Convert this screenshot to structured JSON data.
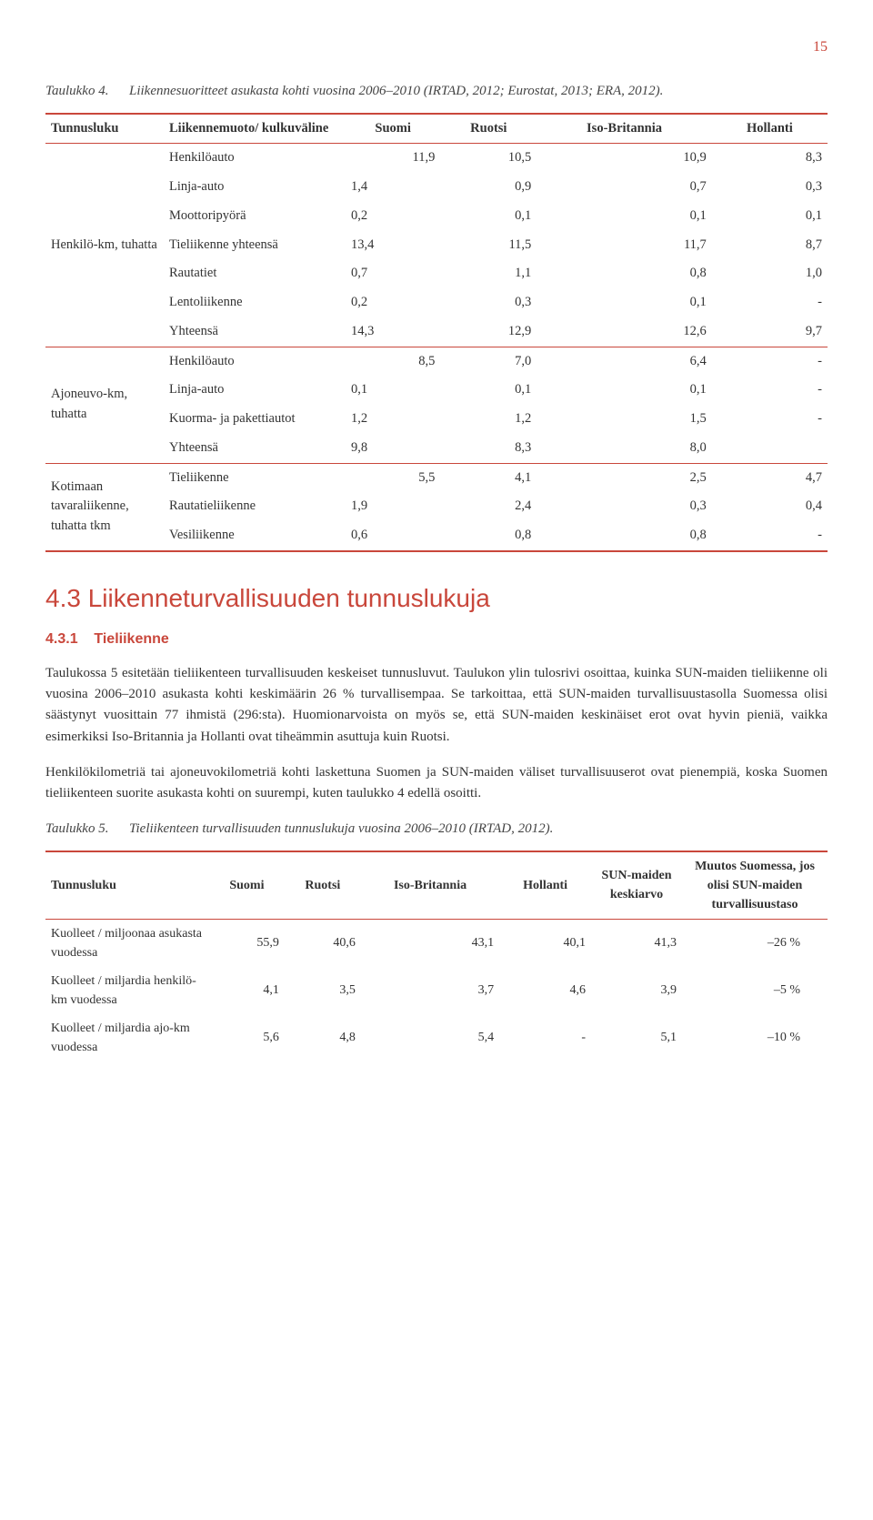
{
  "page_number": "15",
  "table4": {
    "caption_label": "Taulukko 4.",
    "caption_text": "Liikennesuoritteet asukasta kohti vuosina 2006–2010 (IRTAD, 2012; Eurostat, 2013; ERA, 2012).",
    "headers": [
      "Tunnusluku",
      "Liikennemuoto/ kulkuväline",
      "Suomi",
      "Ruotsi",
      "Iso-Britannia",
      "Hollanti"
    ],
    "groups": [
      {
        "name": "Henkilö-km, tuhatta",
        "rows": [
          [
            "Henkilöauto",
            "11,9",
            "10,5",
            "10,9",
            "8,3"
          ],
          [
            "Linja-auto",
            "1,4",
            "0,9",
            "0,7",
            "0,3"
          ],
          [
            "Moottoripyörä",
            "0,2",
            "0,1",
            "0,1",
            "0,1"
          ],
          [
            "Tieliikenne yhteensä",
            "13,4",
            "11,5",
            "11,7",
            "8,7"
          ],
          [
            "Rautatiet",
            "0,7",
            "1,1",
            "0,8",
            "1,0"
          ],
          [
            "Lentoliikenne",
            "0,2",
            "0,3",
            "0,1",
            "-"
          ],
          [
            "Yhteensä",
            "14,3",
            "12,9",
            "12,6",
            "9,7"
          ]
        ]
      },
      {
        "name": "Ajoneuvo-km, tuhatta",
        "rows": [
          [
            "Henkilöauto",
            "8,5",
            "7,0",
            "6,4",
            "-"
          ],
          [
            "Linja-auto",
            "0,1",
            "0,1",
            "0,1",
            "-"
          ],
          [
            "Kuorma- ja pakettiautot",
            "1,2",
            "1,2",
            "1,5",
            "-"
          ],
          [
            "Yhteensä",
            "9,8",
            "8,3",
            "8,0",
            ""
          ]
        ]
      },
      {
        "name": "Kotimaan tavaraliikenne, tuhatta tkm",
        "rows": [
          [
            "Tieliikenne",
            "5,5",
            "4,1",
            "2,5",
            "4,7"
          ],
          [
            "Rautatieliikenne",
            "1,9",
            "2,4",
            "0,3",
            "0,4"
          ],
          [
            "Vesiliikenne",
            "0,6",
            "0,8",
            "0,8",
            "-"
          ]
        ]
      }
    ]
  },
  "section": {
    "number": "4.3",
    "title": "Liikenneturvallisuuden tunnuslukuja",
    "sub_number": "4.3.1",
    "sub_title": "Tieliikenne"
  },
  "paragraphs": {
    "p1": "Taulukossa 5 esitetään tieliikenteen turvallisuuden keskeiset tunnusluvut. Taulukon ylin tulosrivi osoittaa, kuinka SUN-maiden tieliikenne oli vuosina 2006–2010 asukasta kohti keskimäärin 26 % turvallisempaa. Se tarkoittaa, että SUN-maiden turvallisuustasolla Suomessa olisi säästynyt vuosittain 77 ihmistä (296:sta). Huomionarvoista on myös se, että SUN-maiden keskinäiset erot ovat hyvin pieniä, vaikka esimerkiksi Iso-Britannia ja Hollanti ovat tiheämmin asuttuja kuin Ruotsi.",
    "p2": "Henkilökilometriä tai ajoneuvokilometriä kohti laskettuna Suomen ja SUN-maiden väliset turvallisuuserot ovat pienempiä, koska Suomen tieliikenteen suorite asukasta kohti on suurempi, kuten taulukko 4 edellä osoitti."
  },
  "table5": {
    "caption_label": "Taulukko 5.",
    "caption_text": "Tieliikenteen turvallisuuden tunnuslukuja vuosina 2006–2010 (IRTAD, 2012).",
    "headers": [
      "Tunnusluku",
      "Suomi",
      "Ruotsi",
      "Iso-Britannia",
      "Hollanti",
      "SUN-maiden keskiarvo",
      "Muutos Suomessa, jos olisi SUN-maiden turvallisuustaso"
    ],
    "rows": [
      [
        "Kuolleet / miljoonaa asukasta vuodessa",
        "55,9",
        "40,6",
        "43,1",
        "40,1",
        "41,3",
        "–26 %"
      ],
      [
        "Kuolleet / miljardia henkilö-km vuodessa",
        "4,1",
        "3,5",
        "3,7",
        "4,6",
        "3,9",
        "–5 %"
      ],
      [
        "Kuolleet / miljardia ajo-km vuodessa",
        "5,6",
        "4,8",
        "5,4",
        "-",
        "5,1",
        "–10 %"
      ]
    ]
  },
  "colors": {
    "accent": "#c9473b",
    "text": "#333333",
    "bg": "#ffffff"
  }
}
